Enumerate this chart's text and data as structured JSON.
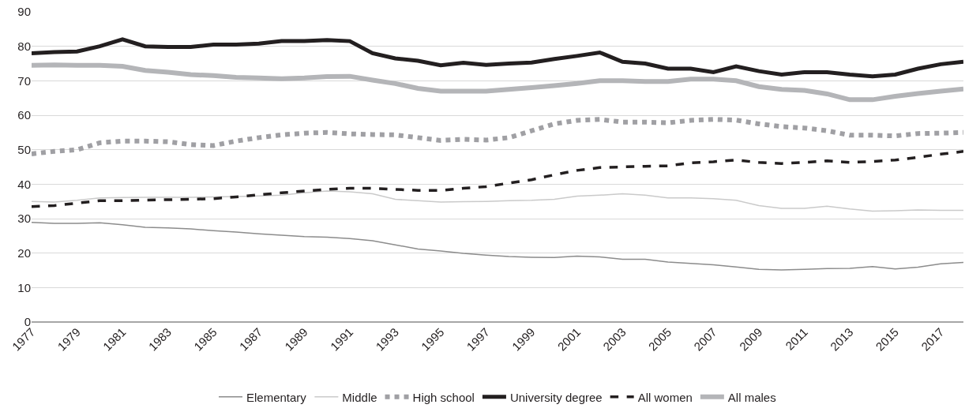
{
  "chart_data": {
    "type": "line",
    "x": [
      1977,
      1978,
      1979,
      1980,
      1981,
      1982,
      1983,
      1984,
      1985,
      1986,
      1987,
      1988,
      1989,
      1990,
      1991,
      1992,
      1993,
      1994,
      1995,
      1996,
      1997,
      1998,
      1999,
      2000,
      2001,
      2002,
      2003,
      2004,
      2005,
      2006,
      2007,
      2008,
      2009,
      2010,
      2011,
      2012,
      2013,
      2014,
      2015,
      2016,
      2017,
      2018
    ],
    "series": [
      {
        "name": "Elementary",
        "color": "#8c8c8c",
        "line_style": "solid",
        "values": [
          28.9,
          28.6,
          28.6,
          28.8,
          28.2,
          27.5,
          27.3,
          27,
          26.5,
          26.1,
          25.6,
          25.2,
          24.8,
          24.6,
          24.2,
          23.6,
          22.4,
          21.2,
          20.6,
          19.9,
          19.4,
          19,
          18.8,
          18.7,
          19.1,
          18.9,
          18.2,
          18.2,
          17.4,
          17,
          16.6,
          16,
          15.3,
          15.1,
          15.3,
          15.5,
          15.6,
          16.1,
          15.4,
          15.9,
          16.9,
          17.3
        ]
      },
      {
        "name": "Middle",
        "color": "#cacaca",
        "line_style": "solid",
        "values": [
          35,
          34.8,
          35.3,
          36,
          36.1,
          36.2,
          36.2,
          36.2,
          36.3,
          36.4,
          36.6,
          36.8,
          37.5,
          38,
          37.8,
          37.2,
          35.6,
          35.2,
          34.8,
          34.9,
          35,
          35.2,
          35.3,
          35.6,
          36.5,
          36.8,
          37.2,
          36.8,
          36,
          36,
          35.8,
          35.3,
          33.8,
          33,
          33,
          33.6,
          32.8,
          32.2,
          32.3,
          32.5,
          32.4,
          32.4
        ]
      },
      {
        "name": "High school",
        "color": "#a0a0a4",
        "line_style": "dotted",
        "values": [
          48.8,
          49.5,
          50,
          52,
          52.5,
          52.5,
          52.3,
          51.5,
          51.2,
          52.5,
          53.5,
          54.3,
          54.8,
          55,
          54.6,
          54.4,
          54.3,
          53.5,
          52.7,
          53,
          52.8,
          53.5,
          55.5,
          57.5,
          58.5,
          58.8,
          58,
          58,
          57.8,
          58.5,
          58.8,
          58.6,
          57.5,
          56.7,
          56.3,
          55.5,
          54.2,
          54.2,
          54,
          54.7,
          54.8,
          55
        ]
      },
      {
        "name": "University degree",
        "color": "#231f20",
        "line_style": "solid",
        "values": [
          78,
          78.3,
          78.5,
          80,
          82,
          80,
          79.8,
          79.8,
          80.5,
          80.5,
          80.8,
          81.5,
          81.5,
          81.8,
          81.5,
          78,
          76.5,
          75.8,
          74.5,
          75.2,
          74.6,
          75,
          75.3,
          76.3,
          77.2,
          78.2,
          75.5,
          75,
          73.5,
          73.5,
          72.5,
          74.2,
          72.8,
          71.8,
          72.5,
          72.5,
          71.8,
          71.3,
          71.8,
          73.5,
          74.8,
          75.5
        ]
      },
      {
        "name": "All women",
        "color": "#231f20",
        "line_style": "dashed",
        "values": [
          33.5,
          33.8,
          34.5,
          35.2,
          35.2,
          35.4,
          35.5,
          35.6,
          35.8,
          36.3,
          36.9,
          37.5,
          38,
          38.5,
          38.8,
          38.8,
          38.5,
          38.2,
          38.2,
          38.8,
          39.3,
          40.3,
          41.3,
          42.7,
          44,
          44.8,
          45,
          45.2,
          45.3,
          46.2,
          46.5,
          47,
          46.3,
          46,
          46.3,
          46.8,
          46.3,
          46.6,
          47,
          47.8,
          48.7,
          49.5
        ]
      },
      {
        "name": "All males",
        "color": "#b4b5b8",
        "line_style": "solid",
        "values": [
          74.5,
          74.6,
          74.5,
          74.5,
          74.2,
          73,
          72.5,
          71.8,
          71.5,
          71,
          70.8,
          70.6,
          70.8,
          71.2,
          71.3,
          70.2,
          69.2,
          67.8,
          67,
          67,
          67,
          67.5,
          68,
          68.6,
          69.2,
          70,
          70,
          69.8,
          69.8,
          70.5,
          70.5,
          70,
          68.3,
          67.5,
          67.2,
          66.2,
          64.5,
          64.5,
          65.5,
          66.3,
          67,
          67.6
        ]
      }
    ],
    "xlim": [
      1977,
      2018
    ],
    "xticks": [
      1977,
      1979,
      1981,
      1983,
      1985,
      1987,
      1989,
      1991,
      1993,
      1995,
      1997,
      1999,
      2001,
      2003,
      2005,
      2007,
      2009,
      2011,
      2013,
      2015,
      2017
    ],
    "ylim": [
      0,
      90
    ],
    "yticks": [
      0,
      10,
      20,
      30,
      40,
      50,
      60,
      70,
      80,
      90
    ],
    "grid": "y",
    "legend": "bottom"
  }
}
